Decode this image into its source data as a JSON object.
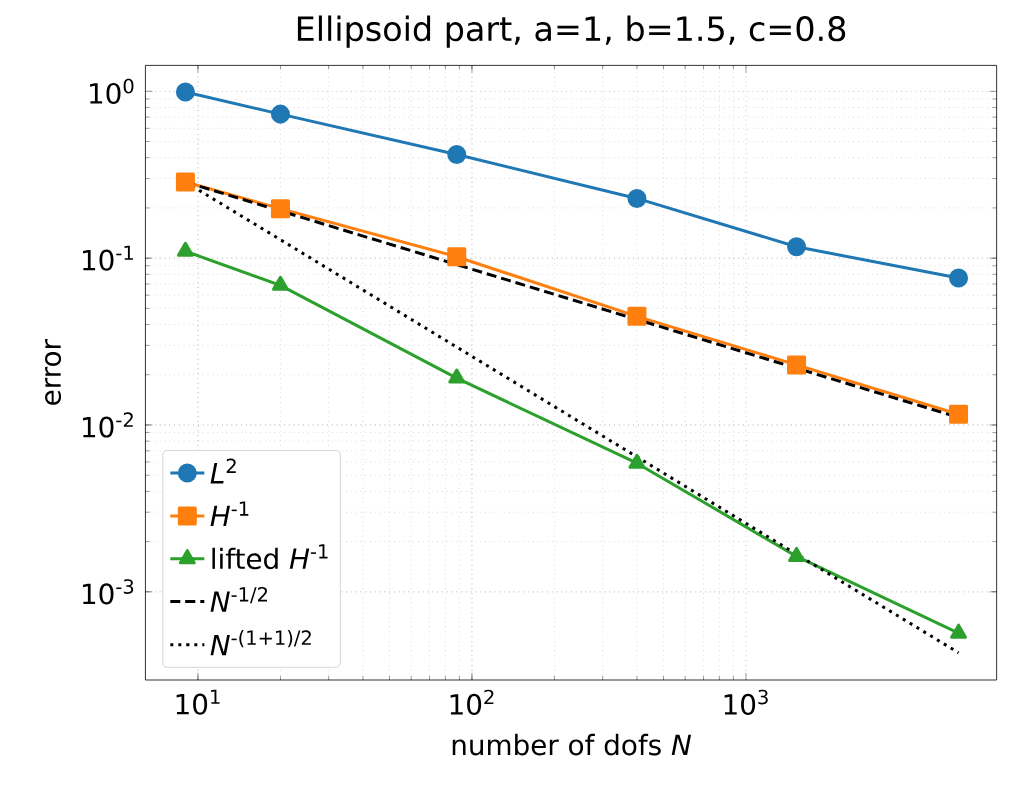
{
  "chart_data": {
    "type": "line",
    "title": "Ellipsoid part, a=1, b=1.5, c=0.8",
    "xlabel": "number of dofs *N*",
    "ylabel": "error",
    "x": [
      9,
      20,
      88,
      400,
      1530,
      5970
    ],
    "series": [
      {
        "name": "*L*$^{2}$",
        "color": "#1f77b4",
        "marker": "circle",
        "line_style": "solid",
        "values": [
          0.99,
          0.73,
          0.418,
          0.228,
          0.117,
          0.076
        ]
      },
      {
        "name": "*H*$^{-1}$",
        "color": "#ff7f0e",
        "marker": "square",
        "line_style": "solid",
        "values": [
          0.286,
          0.198,
          0.102,
          0.0448,
          0.0229,
          0.0116
        ]
      },
      {
        "name": "lifted *H*$^{-1}$",
        "color": "#2ca02c",
        "marker": "triangle",
        "line_style": "solid",
        "values": [
          0.11,
          0.0687,
          0.0191,
          0.0059,
          0.00163,
          0.000565
        ]
      },
      {
        "name": "*N*$^{-1/2}$",
        "color": "#000000",
        "marker": "none",
        "line_style": "dashed",
        "values": [
          0.286,
          0.192,
          0.0915,
          0.0429,
          0.0219,
          0.0111
        ]
      },
      {
        "name": "*N*$^{-(1+1)/2}$",
        "color": "#000000",
        "marker": "none",
        "line_style": "dotted",
        "values": [
          0.286,
          0.129,
          0.0293,
          0.00644,
          0.00168,
          0.000431
        ]
      }
    ],
    "log": "xy",
    "xlim": [
      6.43,
      8220
    ],
    "ylim": [
      0.000296,
      1.43
    ],
    "xticks": [
      {
        "value": 10,
        "label": "10$^{1}$"
      },
      {
        "value": 100,
        "label": "10$^{2}$"
      },
      {
        "value": 1000,
        "label": "10$^{3}$"
      }
    ],
    "yticks": [
      {
        "value": 0.001,
        "label": "10$^{-3}$"
      },
      {
        "value": 0.01,
        "label": "10$^{-2}$"
      },
      {
        "value": 0.1,
        "label": "10$^{-1}$"
      },
      {
        "value": 1,
        "label": "10$^{0}$"
      }
    ],
    "grid": true,
    "legend": "bottom left"
  }
}
